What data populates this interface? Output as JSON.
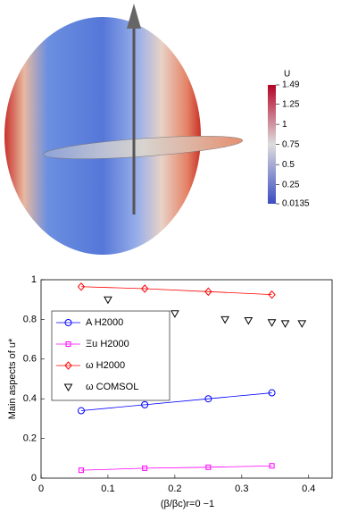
{
  "colorbar": {
    "title": "U",
    "lim": [
      0.0135,
      1.49
    ],
    "ticks": [
      1.49,
      1.25,
      1,
      0.75,
      0.5,
      0.25,
      0.0135
    ]
  },
  "chart_data": {
    "type": "line",
    "xlabel": "(β/βc)r=0 −1",
    "ylabel": "Main aspects of u*",
    "xlim": [
      0,
      0.435
    ],
    "xticks": [
      0,
      0.1,
      0.2,
      0.3,
      0.4
    ],
    "ylim": [
      0,
      1
    ],
    "yticks": [
      0,
      0.2,
      0.4,
      0.6,
      0.8,
      1
    ],
    "legend": "upper-left",
    "series": [
      {
        "name": "A H2000",
        "color": "#0000ff",
        "marker": "circle",
        "line": true,
        "x": [
          0.06,
          0.155,
          0.25,
          0.345
        ],
        "values": [
          0.34,
          0.37,
          0.4,
          0.43
        ]
      },
      {
        "name": "Ξu H2000",
        "color": "#ff00ff",
        "marker": "square",
        "line": true,
        "x": [
          0.06,
          0.155,
          0.25,
          0.345
        ],
        "values": [
          0.04,
          0.05,
          0.055,
          0.062
        ]
      },
      {
        "name": "ω H2000",
        "color": "#ff0000",
        "marker": "diamond",
        "line": true,
        "x": [
          0.06,
          0.155,
          0.25,
          0.345
        ],
        "values": [
          0.965,
          0.955,
          0.94,
          0.925
        ]
      },
      {
        "name": "ω COMSOL",
        "color": "#000000",
        "marker": "triangle-down",
        "line": false,
        "x": [
          0.1,
          0.2,
          0.275,
          0.31,
          0.345,
          0.365,
          0.39
        ],
        "values": [
          0.9,
          0.83,
          0.8,
          0.795,
          0.785,
          0.78,
          0.78
        ]
      }
    ]
  }
}
